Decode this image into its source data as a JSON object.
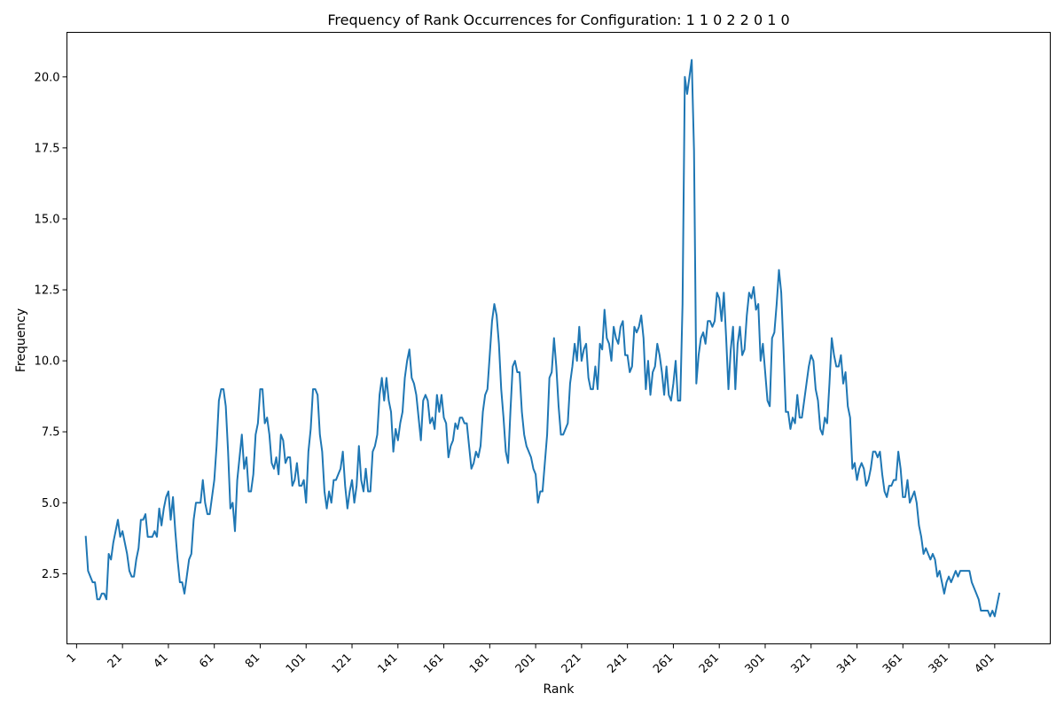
{
  "chart_data": {
    "type": "line",
    "title": "Frequency of Rank Occurrences for Configuration: 1 1 0 2 2 0 1 0",
    "xlabel": "Rank",
    "ylabel": "Frequency",
    "xlim": [
      -3.2,
      425.2
    ],
    "ylim": [
      0.03,
      21.57
    ],
    "x_ticks": [
      1,
      21,
      41,
      61,
      81,
      101,
      121,
      141,
      161,
      181,
      201,
      221,
      241,
      261,
      281,
      301,
      321,
      341,
      361,
      381,
      401
    ],
    "x_tick_labels": [
      "1",
      "21",
      "41",
      "61",
      "81",
      "101",
      "121",
      "141",
      "161",
      "181",
      "201",
      "221",
      "241",
      "261",
      "281",
      "301",
      "321",
      "341",
      "361",
      "381",
      "401"
    ],
    "y_ticks": [
      2.5,
      5.0,
      7.5,
      10.0,
      12.5,
      15.0,
      17.5,
      20.0
    ],
    "y_tick_labels": [
      "2.5",
      "5.0",
      "7.5",
      "10.0",
      "12.5",
      "15.0",
      "17.5",
      "20.0"
    ],
    "line_color": "#1f77b4",
    "series": [
      {
        "name": "frequency",
        "x_start": 5,
        "x_step": 1,
        "values": [
          3.8,
          2.6,
          2.4,
          2.2,
          2.2,
          1.6,
          1.6,
          1.8,
          1.8,
          1.6,
          3.2,
          3.0,
          3.6,
          4.0,
          4.4,
          3.8,
          4.0,
          3.6,
          3.2,
          2.6,
          2.4,
          2.4,
          3.0,
          3.4,
          4.4,
          4.4,
          4.6,
          3.8,
          3.8,
          3.8,
          4.0,
          3.8,
          4.8,
          4.2,
          4.8,
          5.2,
          5.4,
          4.4,
          5.2,
          4.0,
          3.0,
          2.2,
          2.2,
          1.8,
          2.4,
          3.0,
          3.2,
          4.4,
          5.0,
          5.0,
          5.0,
          5.8,
          5.0,
          4.6,
          4.6,
          5.2,
          5.8,
          7.0,
          8.6,
          9.0,
          9.0,
          8.4,
          6.8,
          4.8,
          5.0,
          4.0,
          5.8,
          6.6,
          7.4,
          6.2,
          6.6,
          5.4,
          5.4,
          6.0,
          7.4,
          7.8,
          9.0,
          9.0,
          7.8,
          8.0,
          7.4,
          6.4,
          6.2,
          6.6,
          6.0,
          7.4,
          7.2,
          6.4,
          6.6,
          6.6,
          5.6,
          5.8,
          6.4,
          5.6,
          5.6,
          5.8,
          5.0,
          6.8,
          7.6,
          9.0,
          9.0,
          8.8,
          7.4,
          6.8,
          5.4,
          4.8,
          5.4,
          5.0,
          5.8,
          5.8,
          6.0,
          6.2,
          6.8,
          5.6,
          4.8,
          5.4,
          5.8,
          5.0,
          5.6,
          7.0,
          5.8,
          5.4,
          6.2,
          5.4,
          5.4,
          6.8,
          7.0,
          7.4,
          8.8,
          9.4,
          8.6,
          9.4,
          8.6,
          8.2,
          6.8,
          7.6,
          7.2,
          7.8,
          8.2,
          9.4,
          10.0,
          10.4,
          9.4,
          9.2,
          8.8,
          8.0,
          7.2,
          8.6,
          8.8,
          8.6,
          7.8,
          8.0,
          7.6,
          8.8,
          8.2,
          8.8,
          8.0,
          7.8,
          6.6,
          7.0,
          7.2,
          7.8,
          7.6,
          8.0,
          8.0,
          7.8,
          7.8,
          7.0,
          6.2,
          6.4,
          6.8,
          6.6,
          7.0,
          8.2,
          8.8,
          9.0,
          10.2,
          11.4,
          12.0,
          11.6,
          10.6,
          9.0,
          8.0,
          6.8,
          6.4,
          8.2,
          9.8,
          10.0,
          9.6,
          9.6,
          8.2,
          7.4,
          7.0,
          6.8,
          6.6,
          6.2,
          6.0,
          5.0,
          5.4,
          5.4,
          6.4,
          7.4,
          9.4,
          9.6,
          10.8,
          9.8,
          8.4,
          7.4,
          7.4,
          7.6,
          7.8,
          9.2,
          9.8,
          10.6,
          10.0,
          11.2,
          10.0,
          10.4,
          10.6,
          9.4,
          9.0,
          9.0,
          9.8,
          9.0,
          10.6,
          10.4,
          11.8,
          10.8,
          10.6,
          10.0,
          11.2,
          10.8,
          10.6,
          11.2,
          11.4,
          10.2,
          10.2,
          9.6,
          9.8,
          11.2,
          11.0,
          11.2,
          11.6,
          10.8,
          9.0,
          10.0,
          8.8,
          9.6,
          9.8,
          10.6,
          10.2,
          9.6,
          8.8,
          9.8,
          8.8,
          8.6,
          9.2,
          10.0,
          8.6,
          8.6,
          12.0,
          20.0,
          19.4,
          20.0,
          20.6,
          17.4,
          9.2,
          10.2,
          10.8,
          11.0,
          10.6,
          11.4,
          11.4,
          11.2,
          11.4,
          12.4,
          12.2,
          11.4,
          12.4,
          10.8,
          9.0,
          10.4,
          11.2,
          9.0,
          10.6,
          11.2,
          10.2,
          10.4,
          11.6,
          12.4,
          12.2,
          12.6,
          11.8,
          12.0,
          10.0,
          10.6,
          9.6,
          8.6,
          8.4,
          10.8,
          11.0,
          12.0,
          13.2,
          12.4,
          10.4,
          8.2,
          8.2,
          7.6,
          8.0,
          7.8,
          8.8,
          8.0,
          8.0,
          8.6,
          9.2,
          9.8,
          10.2,
          10.0,
          9.0,
          8.6,
          7.6,
          7.4,
          8.0,
          7.8,
          9.2,
          10.8,
          10.2,
          9.8,
          9.8,
          10.2,
          9.2,
          9.6,
          8.4,
          8.0,
          6.2,
          6.4,
          5.8,
          6.2,
          6.4,
          6.2,
          5.6,
          5.8,
          6.2,
          6.8,
          6.8,
          6.6,
          6.8,
          6.0,
          5.4,
          5.2,
          5.6,
          5.6,
          5.8,
          5.8,
          6.8,
          6.2,
          5.2,
          5.2,
          5.8,
          5.0,
          5.2,
          5.4,
          5.0,
          4.2,
          3.8,
          3.2,
          3.4,
          3.2,
          3.0,
          3.2,
          3.0,
          2.4,
          2.6,
          2.2,
          1.8,
          2.2,
          2.4,
          2.2,
          2.4,
          2.6,
          2.4,
          2.6,
          2.6,
          2.6,
          2.6,
          2.6,
          2.2,
          2.0,
          1.8,
          1.6,
          1.2,
          1.2,
          1.2,
          1.2,
          1.0,
          1.2,
          1.0,
          1.4,
          1.8
        ]
      }
    ]
  }
}
